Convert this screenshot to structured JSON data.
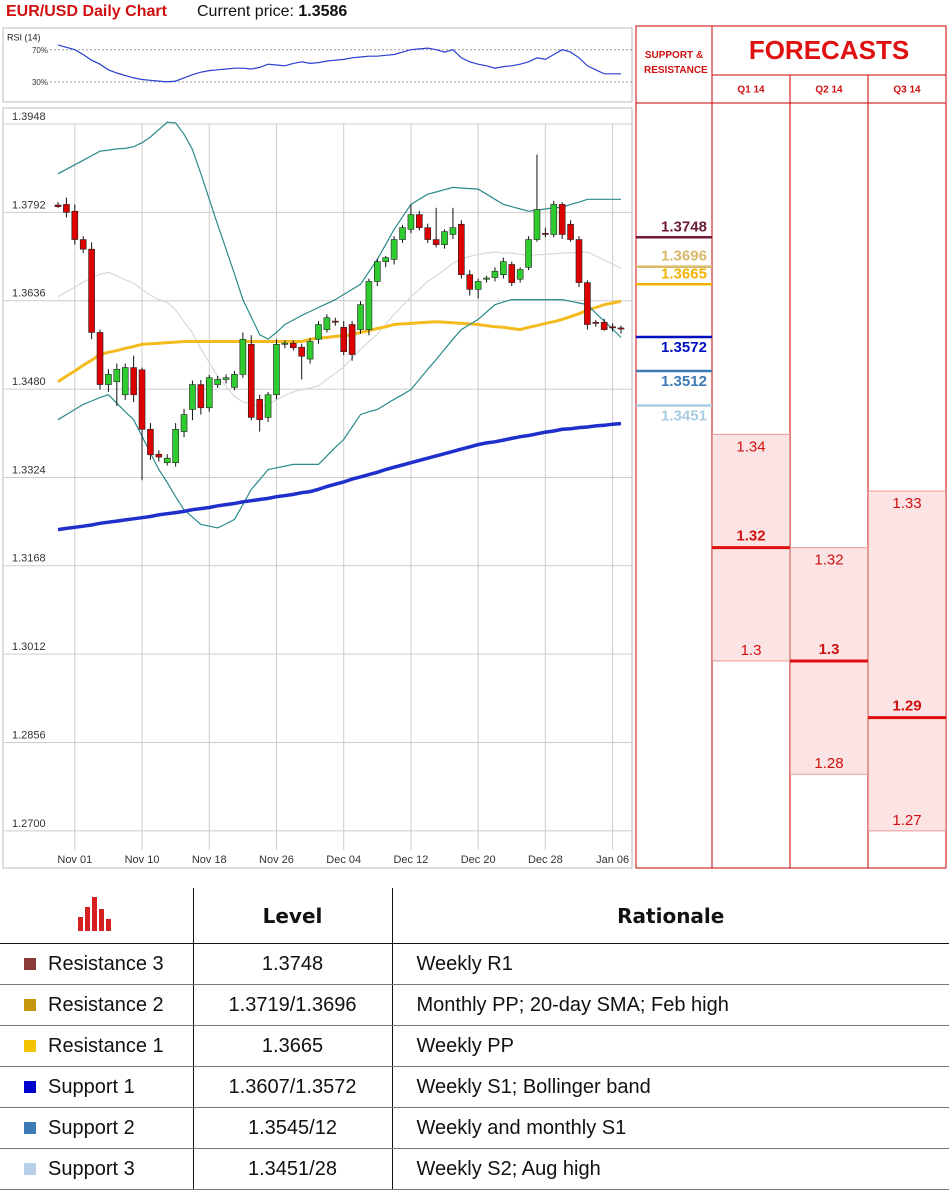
{
  "header": {
    "title": "EUR/USD Daily Chart",
    "price_label": "Current price:",
    "price": "1.3586"
  },
  "chart_data": [
    {
      "type": "line",
      "title": "RSI (14)",
      "series": [
        {
          "color": "#2a3fd0",
          "values": [
            76,
            73,
            70,
            64,
            57,
            52,
            45,
            41,
            38,
            35,
            33,
            32,
            31,
            30,
            31,
            35,
            39,
            42,
            44,
            45,
            46,
            47,
            47,
            46,
            48,
            52,
            51,
            50,
            53,
            55,
            53,
            54,
            56,
            57,
            58,
            60,
            61,
            62,
            62,
            63,
            64,
            67,
            70,
            71,
            72,
            70,
            67,
            70,
            60,
            55,
            52,
            50,
            47,
            49,
            50,
            52,
            55,
            60,
            58,
            64,
            70,
            67,
            60,
            50,
            45,
            40,
            40,
            40
          ]
        }
      ],
      "ylim": [
        5,
        97
      ],
      "yticks": [
        {
          "value": 70,
          "label": "70%"
        },
        {
          "value": 30,
          "label": "30%"
        }
      ],
      "grid": true
    },
    {
      "type": "candlestick",
      "categories": [
        null,
        null,
        "Nov 01",
        null,
        null,
        null,
        null,
        null,
        null,
        null,
        "Nov 10",
        null,
        null,
        null,
        null,
        null,
        null,
        null,
        "Nov 18",
        null,
        null,
        null,
        null,
        null,
        null,
        null,
        "Nov 26",
        null,
        null,
        null,
        null,
        null,
        null,
        null,
        "Dec 04",
        null,
        null,
        null,
        null,
        null,
        null,
        null,
        "Dec 12",
        null,
        null,
        null,
        null,
        null,
        null,
        null,
        "Dec 20",
        null,
        null,
        null,
        null,
        null,
        null,
        null,
        "Dec 28",
        null,
        null,
        null,
        null,
        null,
        null,
        null,
        "Jan 06",
        null
      ],
      "open": [
        1.3805,
        1.3806,
        1.3794,
        1.3744,
        1.3727,
        1.358,
        1.3488,
        1.3493,
        1.347,
        1.3518,
        1.3514,
        1.3409,
        1.3365,
        1.335,
        1.335,
        1.3405,
        1.3444,
        1.3488,
        1.3447,
        1.3488,
        1.3497,
        1.3483,
        1.3506,
        1.3559,
        1.3462,
        1.343,
        1.347,
        1.3559,
        1.3561,
        1.3554,
        1.3533,
        1.3568,
        1.3585,
        1.36,
        1.3589,
        1.3594,
        1.3585,
        1.3585,
        1.367,
        1.3705,
        1.3709,
        1.3744,
        1.3762,
        1.3788,
        1.3765,
        1.3744,
        1.3735,
        1.3753,
        1.3771,
        1.3682,
        1.3656,
        1.3674,
        1.3677,
        1.3682,
        1.37,
        1.3674,
        1.3695,
        1.3744,
        1.3755,
        1.3753,
        1.3806,
        1.3771,
        1.3744,
        1.3668,
        1.3598,
        1.3598,
        1.359,
        1.3588
      ],
      "high": [
        1.381,
        1.3818,
        1.3806,
        1.375,
        1.3739,
        1.3585,
        1.3515,
        1.3525,
        1.3525,
        1.3539,
        1.3518,
        1.342,
        1.3372,
        1.3365,
        1.342,
        1.3445,
        1.3495,
        1.3496,
        1.3505,
        1.3503,
        1.3506,
        1.3512,
        1.358,
        1.3575,
        1.347,
        1.3475,
        1.3568,
        1.3566,
        1.3566,
        1.356,
        1.357,
        1.36,
        1.3612,
        1.3606,
        1.36,
        1.36,
        1.3635,
        1.3675,
        1.371,
        1.3715,
        1.375,
        1.377,
        1.3806,
        1.3795,
        1.3772,
        1.38,
        1.3762,
        1.38,
        1.3778,
        1.369,
        1.3675,
        1.368,
        1.3695,
        1.3712,
        1.3705,
        1.3695,
        1.375,
        1.3894,
        1.3765,
        1.3812,
        1.381,
        1.3778,
        1.375,
        1.3672,
        1.3602,
        1.3604,
        1.3596,
        1.3592
      ],
      "low": [
        1.38,
        1.3783,
        1.3735,
        1.372,
        1.3568,
        1.3479,
        1.3475,
        1.345,
        1.3461,
        1.3457,
        1.3319,
        1.3355,
        1.3352,
        1.3345,
        1.3343,
        1.3395,
        1.3425,
        1.3435,
        1.344,
        1.3482,
        1.349,
        1.3478,
        1.35,
        1.3425,
        1.3405,
        1.3422,
        1.3462,
        1.3552,
        1.3548,
        1.3497,
        1.3525,
        1.356,
        1.358,
        1.3592,
        1.354,
        1.353,
        1.3578,
        1.3575,
        1.3662,
        1.3695,
        1.37,
        1.3738,
        1.3755,
        1.376,
        1.3738,
        1.373,
        1.3728,
        1.3745,
        1.3675,
        1.3645,
        1.364,
        1.3668,
        1.367,
        1.3675,
        1.3662,
        1.3668,
        1.369,
        1.374,
        1.3748,
        1.3748,
        1.3745,
        1.374,
        1.366,
        1.3585,
        1.359,
        1.3583,
        1.3582,
        1.3578
      ],
      "close": [
        1.3802,
        1.3792,
        1.3744,
        1.3727,
        1.358,
        1.3488,
        1.3506,
        1.3515,
        1.3518,
        1.347,
        1.3409,
        1.3364,
        1.336,
        1.3358,
        1.3409,
        1.3435,
        1.3488,
        1.3447,
        1.35,
        1.3497,
        1.35,
        1.3506,
        1.3568,
        1.343,
        1.3426,
        1.347,
        1.3559,
        1.3561,
        1.3553,
        1.3538,
        1.3564,
        1.3594,
        1.3606,
        1.3598,
        1.3546,
        1.3541,
        1.3629,
        1.367,
        1.3705,
        1.3712,
        1.3744,
        1.3765,
        1.3788,
        1.3765,
        1.3744,
        1.3735,
        1.3758,
        1.3765,
        1.3682,
        1.3656,
        1.367,
        1.3676,
        1.3688,
        1.3705,
        1.3668,
        1.3691,
        1.3744,
        1.3797,
        1.3753,
        1.3806,
        1.3753,
        1.3744,
        1.3668,
        1.3594,
        1.3596,
        1.3585,
        1.3588,
        1.3586
      ],
      "up_color": "#2ecc2e",
      "down_color": "#dd0000",
      "series": [
        {
          "color": "#2a8a8a",
          "values": [
            1.386,
            1.3868,
            1.3876,
            1.3884,
            1.3892,
            1.39,
            1.3902,
            1.3904,
            1.3905,
            1.3908,
            1.3915,
            1.3925,
            1.3938,
            1.3951,
            1.395,
            1.393,
            1.3903,
            1.386,
            1.3815,
            1.377,
            1.3727,
            1.3683,
            1.3638,
            1.3607,
            1.3576,
            1.3568,
            1.358,
            1.3594,
            1.3602,
            1.361,
            1.3617,
            1.3624,
            1.3631,
            1.3638,
            1.3647,
            1.3656,
            1.3665,
            1.3687,
            1.3709,
            1.3735,
            1.3762,
            1.3784,
            1.3806,
            1.3815,
            1.3824,
            1.3828,
            1.3832,
            1.3836,
            1.3835,
            1.3834,
            1.3833,
            1.3824,
            1.3815,
            1.3806,
            1.3802,
            1.3798,
            1.3794,
            1.3796,
            1.3798,
            1.38,
            1.3801,
            1.3806,
            1.381,
            1.3815,
            1.3815,
            1.3815,
            1.3815,
            1.3815
          ]
        },
        {
          "color": "#2a8a8a",
          "values": [
            1.3426,
            1.3435,
            1.3444,
            1.3453,
            1.3459,
            1.3465,
            1.347,
            1.3455,
            1.344,
            1.3426,
            1.3397,
            1.3367,
            1.3338,
            1.3315,
            1.329,
            1.3267,
            1.3254,
            1.3241,
            1.3238,
            1.3235,
            1.3242,
            1.325,
            1.3276,
            1.3303,
            1.332,
            1.3338,
            1.3341,
            1.3344,
            1.3347,
            1.3347,
            1.3347,
            1.3347,
            1.3362,
            1.3377,
            1.3391,
            1.3413,
            1.3435,
            1.344,
            1.3444,
            1.3453,
            1.3462,
            1.347,
            1.3479,
            1.3497,
            1.3515,
            1.3532,
            1.355,
            1.3568,
            1.3585,
            1.3594,
            1.3603,
            1.3616,
            1.3629,
            1.3634,
            1.3638,
            1.3638,
            1.3638,
            1.3638,
            1.3638,
            1.3638,
            1.3638,
            1.3635,
            1.3632,
            1.3629,
            1.3614,
            1.36,
            1.3586,
            1.3571
          ]
        },
        {
          "color": "#d8d8d8",
          "values": [
            1.3643,
            1.3652,
            1.366,
            1.3669,
            1.3676,
            1.3683,
            1.3686,
            1.368,
            1.3673,
            1.3667,
            1.3656,
            1.3646,
            1.3638,
            1.3633,
            1.362,
            1.3599,
            1.3579,
            1.3551,
            1.3527,
            1.3503,
            1.3485,
            1.3467,
            1.3457,
            1.3455,
            1.3448,
            1.3453,
            1.3461,
            1.3469,
            1.3475,
            1.3479,
            1.3482,
            1.3486,
            1.3497,
            1.3508,
            1.3519,
            1.3535,
            1.355,
            1.3564,
            1.3577,
            1.3594,
            1.3612,
            1.3627,
            1.3643,
            1.3656,
            1.367,
            1.368,
            1.3691,
            1.3702,
            1.371,
            1.3714,
            1.3718,
            1.372,
            1.3722,
            1.372,
            1.372,
            1.3718,
            1.3716,
            1.3717,
            1.3718,
            1.3719,
            1.372,
            1.3721,
            1.3721,
            1.3722,
            1.3715,
            1.3708,
            1.3701,
            1.3693
          ]
        },
        {
          "color": "#f5bb1e",
          "values": [
            1.3493,
            1.3503,
            1.3512,
            1.3522,
            1.3531,
            1.3541,
            1.3545,
            1.3548,
            1.3552,
            1.3555,
            1.3559,
            1.356,
            1.3561,
            1.3562,
            1.3563,
            1.3564,
            1.3564,
            1.3564,
            1.3564,
            1.3564,
            1.3564,
            1.3564,
            1.3564,
            1.3564,
            1.3564,
            1.3564,
            1.3564,
            1.3564,
            1.3564,
            1.3564,
            1.3568,
            1.357,
            1.3571,
            1.3573,
            1.3574,
            1.3576,
            1.358,
            1.3583,
            1.3587,
            1.359,
            1.3594,
            1.3595,
            1.3596,
            1.3597,
            1.3598,
            1.3599,
            1.3598,
            1.3597,
            1.3596,
            1.3595,
            1.3594,
            1.3592,
            1.359,
            1.3589,
            1.3587,
            1.3585,
            1.3589,
            1.3592,
            1.3596,
            1.3599,
            1.3603,
            1.3608,
            1.3613,
            1.3619,
            1.3624,
            1.3629,
            1.3632,
            1.3635
          ]
        },
        {
          "color": "#1f2fcc",
          "values": [
            1.3232,
            1.3234,
            1.3236,
            1.3238,
            1.324,
            1.3243,
            1.3245,
            1.3247,
            1.3249,
            1.3251,
            1.3253,
            1.3255,
            1.3258,
            1.326,
            1.3262,
            1.3264,
            1.3267,
            1.3269,
            1.3271,
            1.3274,
            1.3276,
            1.3278,
            1.3281,
            1.3283,
            1.3285,
            1.3287,
            1.329,
            1.3292,
            1.3294,
            1.3297,
            1.3299,
            1.3303,
            1.3308,
            1.3312,
            1.3316,
            1.3321,
            1.3325,
            1.3329,
            1.3333,
            1.3338,
            1.3342,
            1.3346,
            1.335,
            1.3354,
            1.3358,
            1.3362,
            1.3366,
            1.337,
            1.3374,
            1.3378,
            1.3382,
            1.3385,
            1.3387,
            1.339,
            1.3393,
            1.3396,
            1.3398,
            1.3401,
            1.3404,
            1.3406,
            1.3409,
            1.341,
            1.3412,
            1.3413,
            1.3415,
            1.3416,
            1.3418,
            1.3419
          ]
        }
      ],
      "ylim": [
        1.2638,
        1.3948
      ],
      "yticks": [
        1.3948,
        1.3792,
        1.3636,
        {
          "value": 1.348,
          "label": "1.3480"
        },
        1.3324,
        1.3168,
        1.3012,
        1.2856,
        {
          "value": 1.27,
          "label": "1.2700"
        }
      ],
      "grid": true
    }
  ],
  "levels": {
    "title": "SUPPORT & RESISTANCE",
    "items": [
      {
        "value": 1.3748,
        "color": "#6b1a3a"
      },
      {
        "value": 1.3696,
        "color": "#d8b86a"
      },
      {
        "value": 1.3665,
        "color": "#f0b400"
      },
      {
        "value": 1.3572,
        "color": "#0010c0"
      },
      {
        "value": 1.3512,
        "color": "#3d7ab5"
      },
      {
        "value": 1.3451,
        "color": "#a8cce0"
      }
    ]
  },
  "forecasts": {
    "title": "FORECASTS",
    "quarters": [
      "Q1 14",
      "Q2 14",
      "Q3 14"
    ],
    "high": [
      1.34,
      1.32,
      1.33
    ],
    "mid": [
      1.32,
      1.3,
      1.29
    ],
    "low": [
      1.3,
      1.28,
      1.27
    ]
  },
  "table": {
    "header": [
      "Level",
      "Rationale"
    ],
    "rows": [
      [
        "Resistance 3",
        "1.3748",
        "Weekly R1"
      ],
      [
        "Resistance 2",
        "1.3719/1.3696",
        "Monthly PP; 20-day SMA; Feb high"
      ],
      [
        "Resistance 1",
        "1.3665",
        "Weekly PP"
      ],
      [
        "Support 1",
        "1.3607/1.3572",
        "Weekly S1; Bollinger band"
      ],
      [
        "Support 2",
        "1.3545/12",
        "Weekly and monthly S1"
      ],
      [
        "Support 3",
        "1.3451/28",
        "Weekly S2; Aug high"
      ]
    ],
    "colors": [
      "#8b3a3a",
      "#c8960c",
      "#f5c400",
      "#0000cc",
      "#3d7ab5",
      "#b8cfe8"
    ]
  }
}
